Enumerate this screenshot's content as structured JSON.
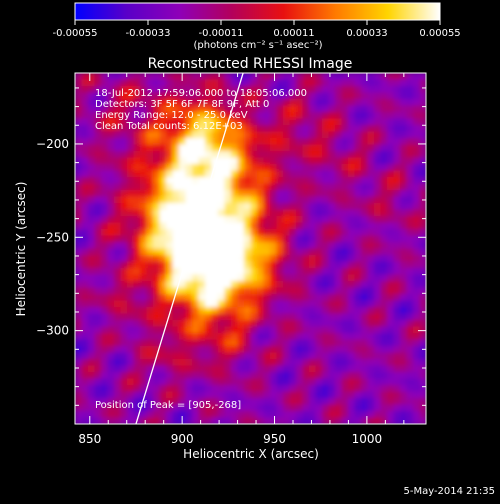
{
  "colorbar": {
    "ticks": [
      "-0.00055",
      "-0.00033",
      "-0.00011",
      "0.00011",
      "0.00033",
      "0.00055"
    ],
    "unit_label": "(photons cm⁻² s⁻¹ asec⁻²)",
    "gradient": [
      "#0000ff",
      "#5a00c8",
      "#8e00b8",
      "#b3005c",
      "#e81010",
      "#ff7a00",
      "#ffd400",
      "#ffffff"
    ]
  },
  "chart_data": {
    "type": "heatmap",
    "title": "Reconstructed RHESSI Image",
    "xlabel": "Heliocentric X (arcsec)",
    "ylabel": "Heliocentric Y (arcsec)",
    "xlim": [
      842,
      1032
    ],
    "ylim": [
      -350,
      -162
    ],
    "x_ticks": [
      850,
      900,
      950,
      1000
    ],
    "y_ticks": [
      -300,
      -250,
      -200
    ],
    "annotations": [
      "18-Jul-2012 17:59:06.000 to 18:05:06.000",
      "Detectors: 3F 5F 6F 7F 8F 9F, Att 0",
      "Energy Range: 12.0 - 25.0 keV",
      "Clean     Total counts: 6.12E+03"
    ],
    "peak_label": "Position of Peak = [905,-268]",
    "peak": [
      905,
      -268
    ],
    "limb_line": [
      [
        875,
        -350
      ],
      [
        933,
        -162
      ]
    ],
    "colors": {
      "line": "#ffffff",
      "background": "#000000"
    }
  },
  "footer": {
    "timestamp": "5-May-2014 21:35"
  }
}
